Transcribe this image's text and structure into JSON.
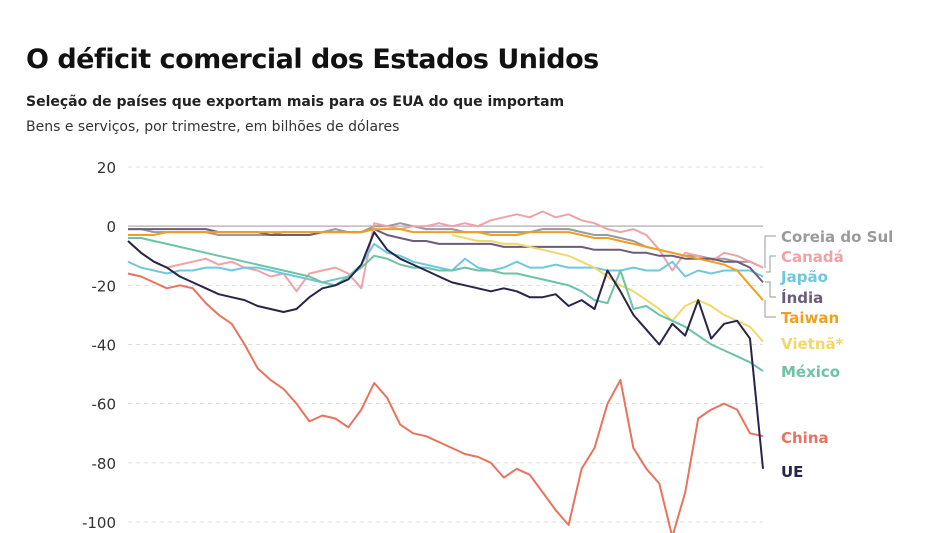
{
  "chart_data": {
    "type": "line",
    "title": "O déficit comercial dos Estados Unidos",
    "subtitle": "Seleção de países que exportam mais para os EUA do que importam",
    "ylabel": "Bens e serviços, por trimestre, em bilhões de dólares",
    "ylim": [
      -100,
      20
    ],
    "yticks": [
      20,
      0,
      -20,
      -40,
      -60,
      -80,
      -100
    ],
    "grid": true,
    "legend": "right (direct labels)",
    "series": [
      {
        "name": "Coreia do Sul",
        "color": "#9a9a9a",
        "values": [
          -1,
          -1,
          -2,
          -2,
          -2,
          -2,
          -2,
          -3,
          -3,
          -3,
          -3,
          -3,
          -2,
          -2,
          -2,
          -2,
          -1,
          -2,
          -2,
          0,
          0,
          1,
          0,
          -1,
          -1,
          -1,
          -2,
          -2,
          -2,
          -2,
          -2,
          -2,
          -1,
          -1,
          -1,
          -2,
          -3,
          -3,
          -4,
          -5,
          -7,
          -8,
          -9,
          -10,
          -10,
          -11,
          -11,
          -12,
          -12,
          -14
        ]
      },
      {
        "name": "Canadá",
        "color": "#f0a3a6",
        "values": [
          -5,
          -9,
          -12,
          -14,
          -13,
          -12,
          -11,
          -13,
          -12,
          -14,
          -15,
          -17,
          -16,
          -22,
          -16,
          -15,
          -14,
          -16,
          -21,
          1,
          0,
          -1,
          0,
          0,
          1,
          0,
          1,
          0,
          2,
          3,
          4,
          3,
          5,
          3,
          4,
          2,
          1,
          -1,
          -2,
          -1,
          -3,
          -8,
          -15,
          -9,
          -10,
          -12,
          -9,
          -10,
          -12,
          -14
        ]
      },
      {
        "name": "Japão",
        "color": "#6ec9dd",
        "values": [
          -12,
          -14,
          -15,
          -16,
          -15,
          -15,
          -14,
          -14,
          -15,
          -14,
          -14,
          -15,
          -16,
          -17,
          -18,
          -19,
          -18,
          -17,
          -13,
          -6,
          -9,
          -10,
          -12,
          -13,
          -14,
          -15,
          -11,
          -14,
          -15,
          -14,
          -12,
          -14,
          -14,
          -13,
          -14,
          -14,
          -14,
          -15,
          -15,
          -14,
          -15,
          -15,
          -12,
          -17,
          -15,
          -16,
          -15,
          -15,
          -15,
          -17
        ]
      },
      {
        "name": "Índia",
        "color": "#6c5b7b",
        "values": [
          -1,
          -1,
          -1,
          -1,
          -1,
          -1,
          -1,
          -2,
          -2,
          -2,
          -2,
          -3,
          -3,
          -3,
          -3,
          -2,
          -2,
          -2,
          -2,
          -1,
          -3,
          -4,
          -5,
          -5,
          -6,
          -6,
          -6,
          -6,
          -6,
          -7,
          -7,
          -7,
          -7,
          -7,
          -7,
          -7,
          -8,
          -8,
          -8,
          -9,
          -9,
          -10,
          -10,
          -11,
          -11,
          -11,
          -12,
          -12,
          -14,
          -19
        ]
      },
      {
        "name": "Taiwan",
        "color": "#f0a020",
        "values": [
          -3,
          -3,
          -3,
          -2,
          -2,
          -2,
          -2,
          -2,
          -2,
          -2,
          -2,
          -2,
          -2,
          -2,
          -2,
          -2,
          -2,
          -2,
          -2,
          -1,
          -1,
          -1,
          -2,
          -2,
          -2,
          -2,
          -2,
          -2,
          -3,
          -3,
          -3,
          -2,
          -2,
          -2,
          -2,
          -3,
          -4,
          -4,
          -5,
          -6,
          -7,
          -8,
          -9,
          -10,
          -11,
          -12,
          -13,
          -15,
          -20,
          -25
        ]
      },
      {
        "name": "Vietnã*",
        "color": "#f2d86a",
        "values": [
          null,
          null,
          null,
          null,
          null,
          null,
          null,
          null,
          null,
          null,
          null,
          null,
          null,
          null,
          null,
          null,
          null,
          null,
          null,
          null,
          null,
          null,
          null,
          null,
          null,
          -3,
          -4,
          -5,
          -5,
          -6,
          -6,
          -7,
          -8,
          -9,
          -10,
          -12,
          -14,
          -17,
          -20,
          -22,
          -25,
          -28,
          -32,
          -27,
          -25,
          -27,
          -30,
          -32,
          -34,
          -39
        ]
      },
      {
        "name": "México",
        "color": "#6cc3a6",
        "values": [
          -4,
          -4,
          -5,
          -6,
          -7,
          -8,
          -9,
          -10,
          -11,
          -12,
          -13,
          -14,
          -15,
          -16,
          -17,
          -19,
          -20,
          -17,
          -14,
          -10,
          -11,
          -13,
          -14,
          -14,
          -15,
          -15,
          -14,
          -15,
          -15,
          -16,
          -16,
          -17,
          -18,
          -19,
          -20,
          -22,
          -25,
          -26,
          -15,
          -28,
          -27,
          -30,
          -32,
          -34,
          -37,
          -40,
          -42,
          -44,
          -46,
          -49
        ]
      },
      {
        "name": "China",
        "color": "#e8735f",
        "values": [
          -16,
          -17,
          -19,
          -21,
          -20,
          -21,
          -26,
          -30,
          -33,
          -40,
          -48,
          -52,
          -55,
          -60,
          -66,
          -64,
          -65,
          -68,
          -62,
          -53,
          -58,
          -67,
          -70,
          -71,
          -73,
          -75,
          -77,
          -78,
          -80,
          -85,
          -82,
          -84,
          -90,
          -96,
          -101,
          -82,
          -75,
          -60,
          -52,
          -75,
          -82,
          -87,
          -105,
          -90,
          -65,
          -62,
          -60,
          -62,
          -70,
          -71
        ]
      },
      {
        "name": "UE",
        "color": "#27254a",
        "values": [
          -5,
          -9,
          -12,
          -14,
          -17,
          -19,
          -21,
          -23,
          -24,
          -25,
          -27,
          -28,
          -29,
          -28,
          -24,
          -21,
          -20,
          -18,
          -13,
          -2,
          -8,
          -11,
          -13,
          -15,
          -17,
          -19,
          -20,
          -21,
          -22,
          -21,
          -22,
          -24,
          -24,
          -23,
          -27,
          -25,
          -28,
          -15,
          -22,
          -30,
          -35,
          -40,
          -33,
          -37,
          -25,
          -38,
          -33,
          -32,
          -38,
          -82
        ]
      }
    ]
  }
}
